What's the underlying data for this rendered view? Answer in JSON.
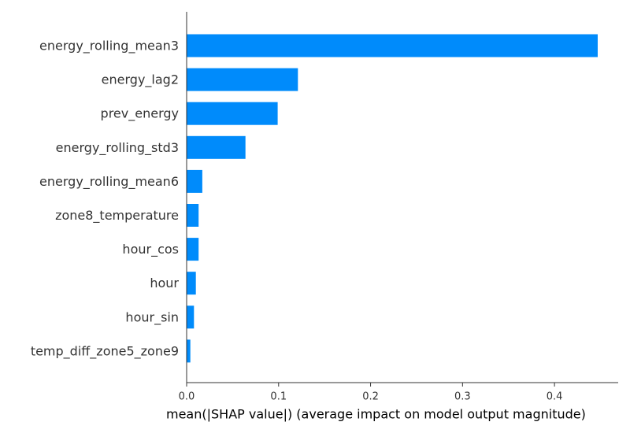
{
  "chart_data": {
    "type": "bar",
    "orientation": "horizontal",
    "title": "",
    "xlabel": "mean(|SHAP value|) (average impact on model output magnitude)",
    "ylabel": "",
    "xlim": [
      0,
      0.47
    ],
    "x_ticks": [
      0.0,
      0.1,
      0.2,
      0.3,
      0.4
    ],
    "x_tick_labels": [
      "0.0",
      "0.1",
      "0.2",
      "0.3",
      "0.4"
    ],
    "grid": false,
    "legend": "none",
    "bar_color": "#008bfb",
    "categories": [
      "energy_rolling_mean3",
      "energy_lag2",
      "prev_energy",
      "energy_rolling_std3",
      "energy_rolling_mean6",
      "zone8_temperature",
      "hour_cos",
      "hour",
      "hour_sin",
      "temp_diff_zone5_zone9"
    ],
    "values": [
      0.447,
      0.121,
      0.099,
      0.064,
      0.017,
      0.013,
      0.013,
      0.01,
      0.008,
      0.004
    ]
  }
}
